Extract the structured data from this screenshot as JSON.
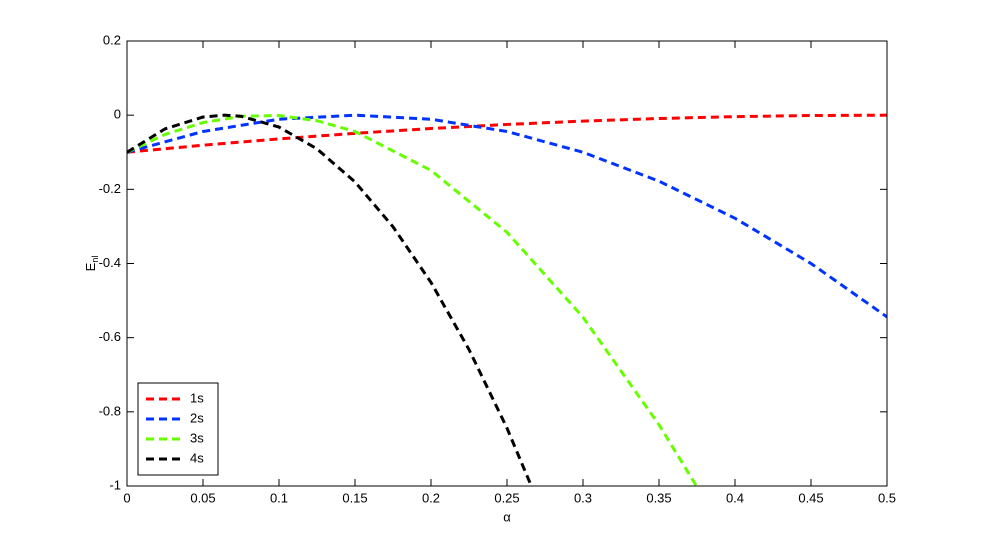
{
  "chart_data": {
    "type": "line",
    "xlabel": "α",
    "ylabel": "E",
    "ylabel_subscript": "nl",
    "xlim": [
      0,
      0.5
    ],
    "ylim": [
      -1,
      0.2
    ],
    "xticks": [
      0,
      0.05,
      0.1,
      0.15,
      0.2,
      0.25,
      0.3,
      0.35,
      0.4,
      0.45,
      0.5
    ],
    "yticks": [
      0.2,
      0,
      -0.2,
      -0.4,
      -0.6,
      -0.8,
      -1
    ],
    "grid": false,
    "legend": "lower left",
    "line_style": "dashed",
    "series": [
      {
        "name": "1s",
        "color": "#ff0000",
        "x": [
          0,
          0.05,
          0.1,
          0.15,
          0.2,
          0.25,
          0.3,
          0.35,
          0.4,
          0.45,
          0.5
        ],
        "values": [
          -0.1,
          -0.081,
          -0.064,
          -0.049,
          -0.036,
          -0.025,
          -0.016,
          -0.009,
          -0.004,
          -0.001,
          0
        ]
      },
      {
        "name": "2s",
        "color": "#0033ff",
        "x": [
          0,
          0.05,
          0.1,
          0.15,
          0.2,
          0.25,
          0.3,
          0.35,
          0.4,
          0.45,
          0.5
        ],
        "values": [
          -0.1,
          -0.044,
          -0.011,
          0,
          -0.011,
          -0.044,
          -0.1,
          -0.178,
          -0.278,
          -0.4,
          -0.544
        ]
      },
      {
        "name": "3s",
        "color": "#66ff00",
        "x": [
          0,
          0.025,
          0.05,
          0.075,
          0.1,
          0.125,
          0.15,
          0.2,
          0.25,
          0.3,
          0.35,
          0.3746
        ],
        "values": [
          -0.1,
          -0.052,
          -0.02,
          -0.003,
          -0.001,
          -0.015,
          -0.044,
          -0.149,
          -0.316,
          -0.545,
          -0.835,
          -1
        ]
      },
      {
        "name": "4s",
        "color": "#000000",
        "x": [
          0,
          0.025,
          0.05,
          0.064,
          0.075,
          0.1,
          0.125,
          0.15,
          0.175,
          0.2,
          0.225,
          0.25,
          0.266
        ],
        "values": [
          -0.1,
          -0.037,
          -0.005,
          0,
          -0.003,
          -0.032,
          -0.091,
          -0.18,
          -0.301,
          -0.451,
          -0.632,
          -0.844,
          -1
        ]
      }
    ]
  }
}
